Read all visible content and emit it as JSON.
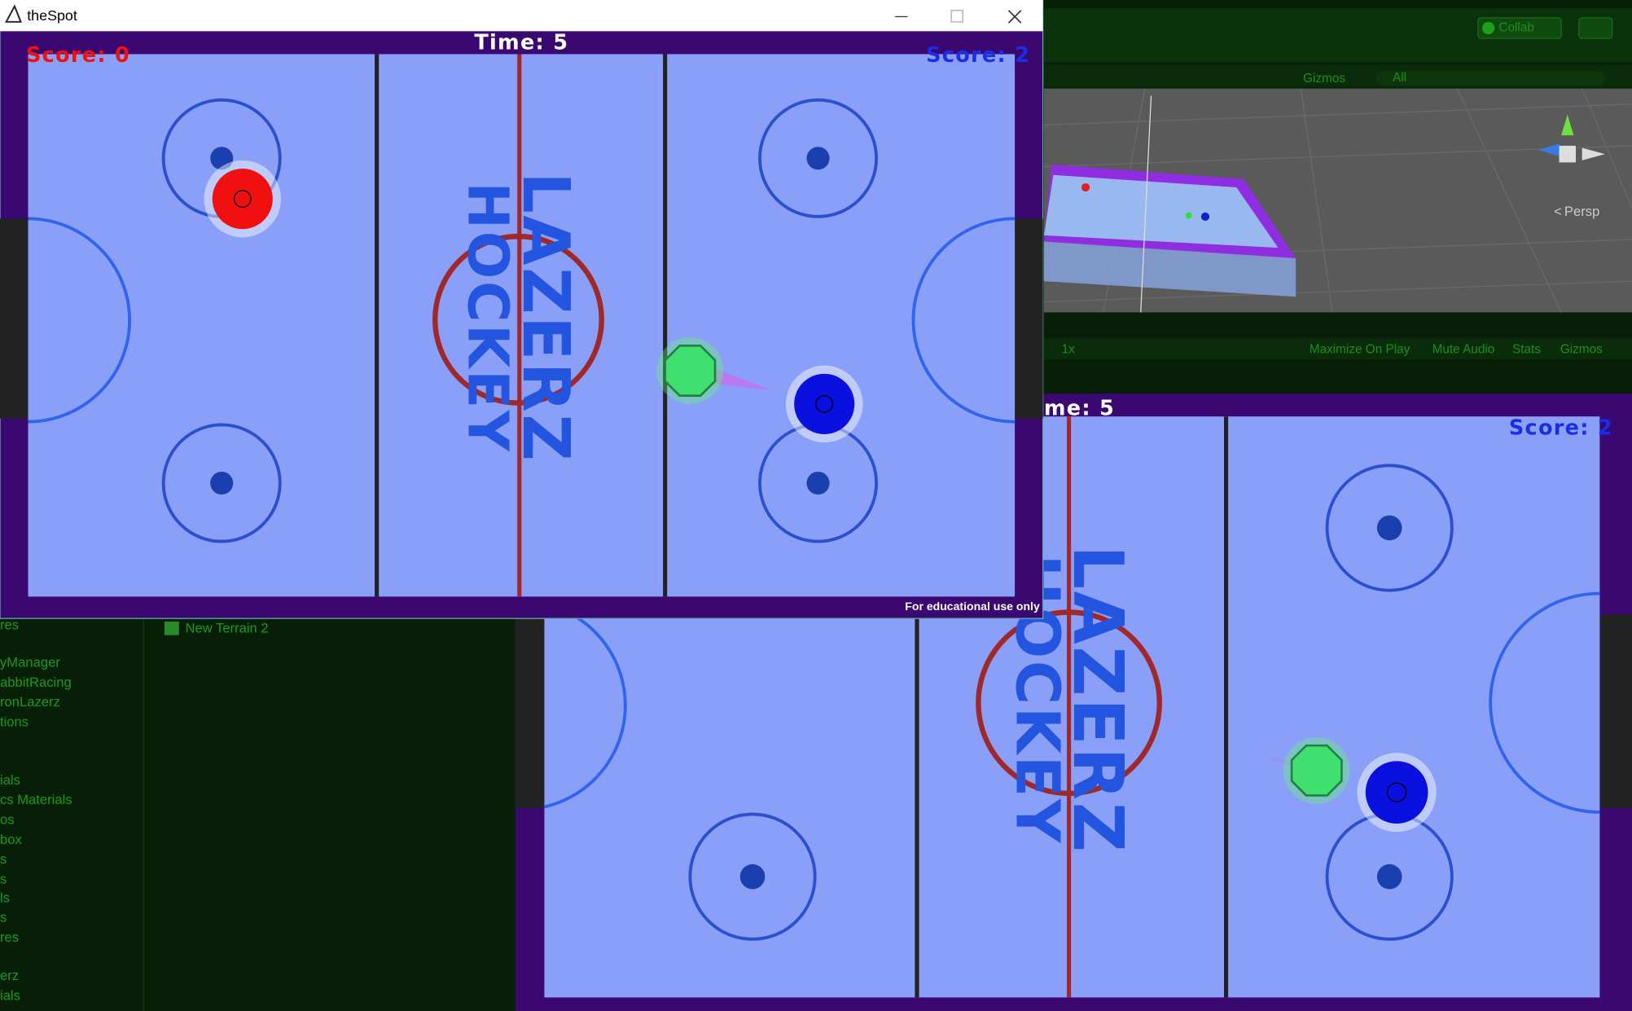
{
  "game_window": {
    "title": "theSpot",
    "score_left": "Score: 0",
    "time": "Time: 5",
    "score_right": "Score: 2",
    "logo_top": "LAZERZ",
    "logo_bottom": "HOCKEY",
    "footer": "For educational use only"
  },
  "editor": {
    "collab": "Collab",
    "scene_gizmos": "Gizmos",
    "search": "All",
    "persp": "Persp",
    "game_scale": "1x",
    "toolbar": [
      "Maximize On Play",
      "Mute Audio",
      "Stats",
      "Gizmos"
    ],
    "hierarchy": [
      "res",
      "yManager",
      "abbitRacing",
      "ronLazerz",
      "tions",
      "ials",
      "cs Materials",
      "os",
      "box",
      "s",
      "s",
      "ls",
      "s",
      "res",
      "erz",
      "ials"
    ],
    "project_item": "New Terrain 2"
  },
  "game_view": {
    "time": "me: 5",
    "score_right": "Score: 2",
    "logo_top": "LAZERZ",
    "logo_bottom": "HOCKEY"
  }
}
